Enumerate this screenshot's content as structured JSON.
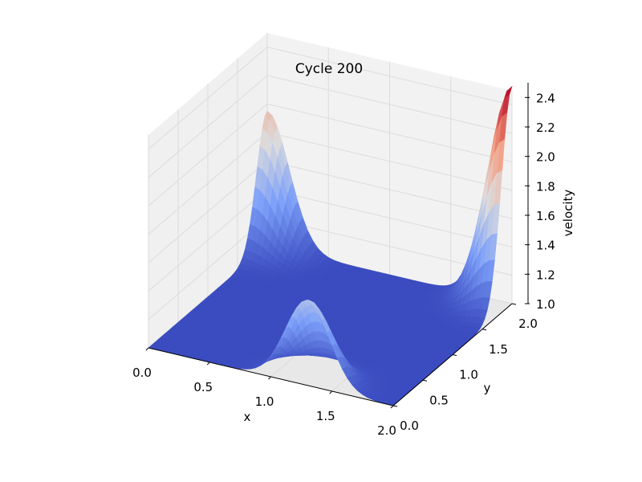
{
  "chart_data": {
    "type": "surface",
    "title": "Cycle 200",
    "xlabel": "x",
    "ylabel": "y",
    "zlabel": "velocity",
    "xlim": [
      0.0,
      2.0
    ],
    "ylim": [
      0.0,
      2.0
    ],
    "zlim": [
      1.0,
      2.5
    ],
    "x_ticks": [
      "0.0",
      "0.5",
      "1.0",
      "1.5",
      "2.0"
    ],
    "y_ticks": [
      "0.0",
      "0.5",
      "1.0",
      "1.5",
      "2.0"
    ],
    "z_ticks": [
      "1.0",
      "1.2",
      "1.4",
      "1.6",
      "1.8",
      "2.0",
      "2.2",
      "2.4"
    ],
    "z_ticks_num": [
      1.0,
      1.2,
      1.4,
      1.6,
      1.8,
      2.0,
      2.2,
      2.4
    ],
    "colormap": "coolwarm",
    "grid": true,
    "peaks": [
      {
        "x": 0.0,
        "y": 2.0,
        "height": 0.95
      },
      {
        "x": 2.0,
        "y": 2.0,
        "height": 1.53
      },
      {
        "x": 1.3,
        "y": 0.0,
        "height": 0.6
      }
    ],
    "base_value": 1.0
  }
}
